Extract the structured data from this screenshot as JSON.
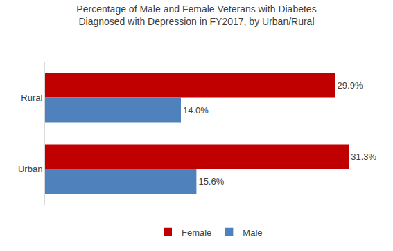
{
  "chart_data": {
    "type": "bar",
    "title": "Percentage of Male and Female Veterans with Diabetes\nDiagnosed with Depression in FY2017, by Urban/Rural",
    "orientation": "horizontal",
    "categories": [
      "Rural",
      "Urban"
    ],
    "series": [
      {
        "name": "Female",
        "color": "#c00000",
        "values": [
          29.9,
          31.3
        ],
        "value_labels": [
          "29.9%",
          "31.3%"
        ]
      },
      {
        "name": "Male",
        "color": "#4f81bd",
        "values": [
          14.0,
          15.6
        ],
        "value_labels": [
          "14.0%",
          "15.6%"
        ]
      }
    ],
    "xlim": [
      0,
      34
    ],
    "data_labels": true,
    "tick_labels": "y",
    "grid": false,
    "legend": "bottom"
  }
}
